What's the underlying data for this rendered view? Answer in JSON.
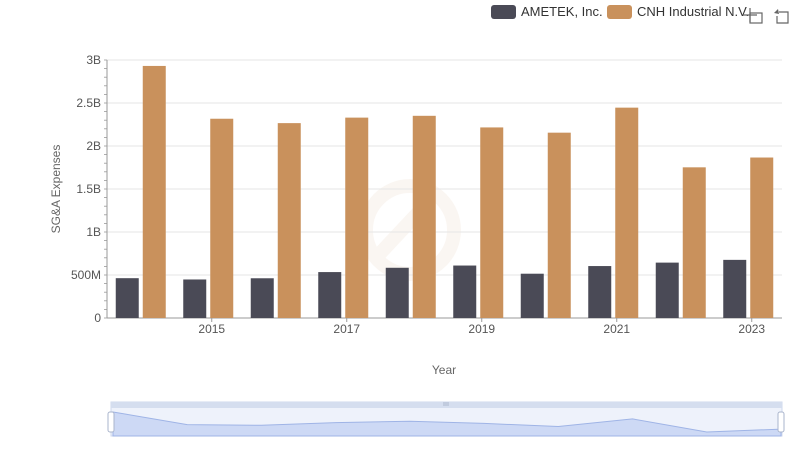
{
  "chart_data": {
    "type": "bar",
    "categories": [
      "2014",
      "2015",
      "2016",
      "2017",
      "2018",
      "2019",
      "2020",
      "2021",
      "2022",
      "2023"
    ],
    "x_tick_labels": [
      "2015",
      "2017",
      "2019",
      "2021",
      "2023"
    ],
    "series": [
      {
        "name": "AMETEK, Inc.",
        "color": "#4a4a56",
        "values": [
          463000000,
          448000000,
          462000000,
          534000000,
          584000000,
          610000000,
          515000000,
          604000000,
          644000000,
          676000000
        ]
      },
      {
        "name": "CNH Industrial N.V.",
        "color": "#c9915c",
        "values": [
          2931000000,
          2317000000,
          2266000000,
          2330000000,
          2351000000,
          2216000000,
          2155000000,
          2446000000,
          1752000000,
          1866000000
        ]
      }
    ],
    "y_ticks": [
      0,
      500000000,
      1000000000,
      1500000000,
      2000000000,
      2500000000,
      3000000000
    ],
    "y_tick_labels": [
      "0",
      "500M",
      "1B",
      "1.5B",
      "2B",
      "2.5B",
      "3B"
    ],
    "ylim": [
      0,
      3000000000
    ],
    "xlabel": "Year",
    "ylabel": "SG&A Expenses",
    "legend_position": "top-right",
    "grid": true
  },
  "toolbar": {
    "icons": [
      "zoom-icon",
      "reset-zoom-icon"
    ]
  }
}
